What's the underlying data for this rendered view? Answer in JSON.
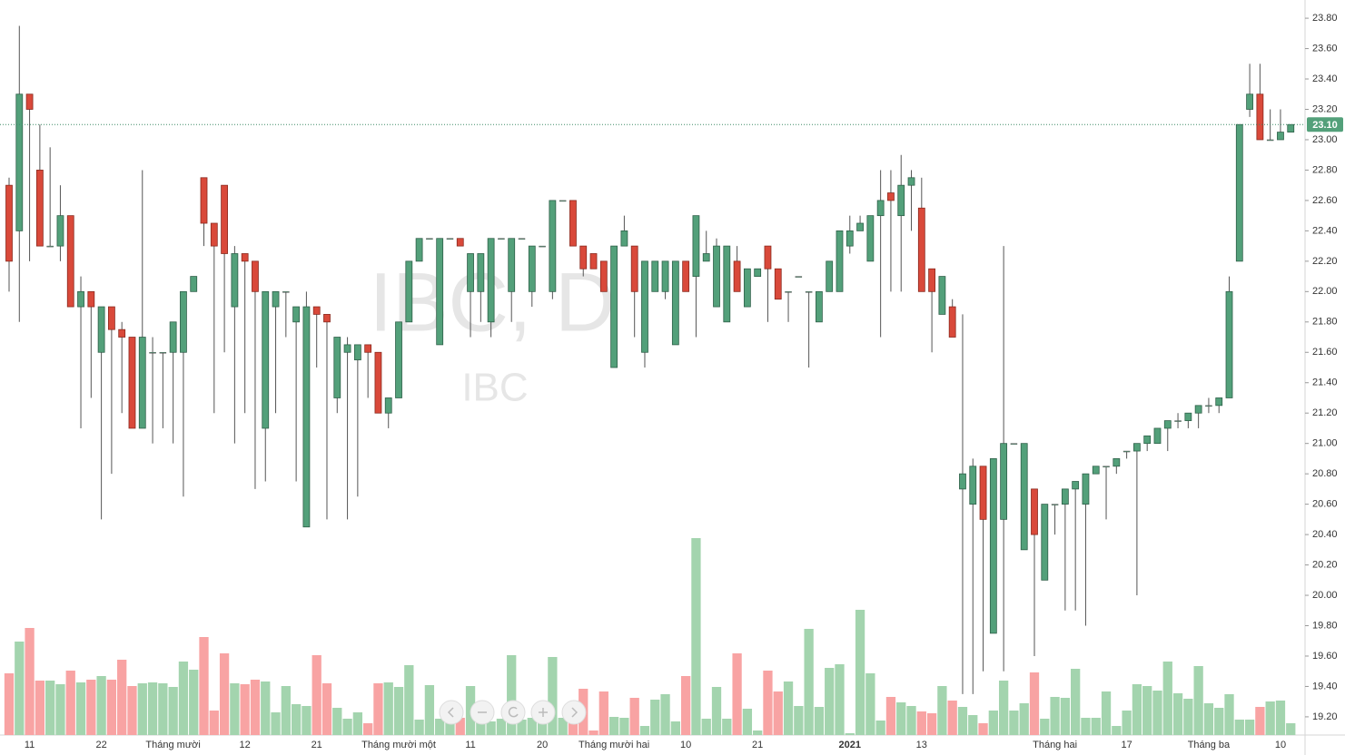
{
  "chart_data": {
    "type": "candlestick",
    "watermark": "IBC, D",
    "symbol": "IBC",
    "ylim": [
      19.08,
      23.92
    ],
    "yticks": [
      {
        "value": 19.2,
        "label": "19.20"
      },
      {
        "value": 19.4,
        "label": "19.40"
      },
      {
        "value": 19.6,
        "label": "19.60"
      },
      {
        "value": 19.8,
        "label": "19.80"
      },
      {
        "value": 20.0,
        "label": "20.00"
      },
      {
        "value": 20.2,
        "label": "20.20"
      },
      {
        "value": 20.4,
        "label": "20.40"
      },
      {
        "value": 20.6,
        "label": "20.60"
      },
      {
        "value": 20.8,
        "label": "20.80"
      },
      {
        "value": 21.0,
        "label": "21.00"
      },
      {
        "value": 21.2,
        "label": "21.20"
      },
      {
        "value": 21.4,
        "label": "21.40"
      },
      {
        "value": 21.6,
        "label": "21.60"
      },
      {
        "value": 21.8,
        "label": "21.80"
      },
      {
        "value": 22.0,
        "label": "22.00"
      },
      {
        "value": 22.2,
        "label": "22.20"
      },
      {
        "value": 22.4,
        "label": "22.40"
      },
      {
        "value": 22.6,
        "label": "22.60"
      },
      {
        "value": 22.8,
        "label": "22.80"
      },
      {
        "value": 23.0,
        "label": "23.00"
      },
      {
        "value": 23.2,
        "label": "23.20"
      },
      {
        "value": 23.4,
        "label": "23.40"
      },
      {
        "value": 23.6,
        "label": "23.60"
      },
      {
        "value": 23.8,
        "label": "23.80"
      }
    ],
    "last_price": {
      "value": 23.1,
      "label": "23.10"
    },
    "up_color": "#53a07a",
    "down_color": "#d9493a",
    "volume_up_color": "#a3d4ae",
    "volume_down_color": "#f8a3a3",
    "categories": [
      null,
      null,
      "11",
      null,
      null,
      null,
      null,
      null,
      null,
      "22",
      null,
      null,
      null,
      null,
      null,
      null,
      "Tháng mười",
      null,
      null,
      null,
      null,
      null,
      null,
      "12",
      null,
      null,
      null,
      null,
      null,
      null,
      "21",
      null,
      null,
      null,
      null,
      null,
      null,
      null,
      "Tháng mười một",
      null,
      null,
      null,
      null,
      null,
      null,
      "11",
      null,
      null,
      null,
      null,
      null,
      null,
      "20",
      null,
      null,
      null,
      null,
      null,
      null,
      "Tháng mười hai",
      null,
      null,
      null,
      null,
      null,
      null,
      "10",
      null,
      null,
      null,
      null,
      null,
      null,
      "21",
      null,
      null,
      null,
      null,
      null,
      null,
      null,
      null,
      "2021",
      null,
      null,
      null,
      null,
      null,
      null,
      "13",
      null,
      null,
      null,
      null,
      null,
      null,
      null,
      null,
      null,
      null,
      null,
      null,
      "Tháng hai",
      null,
      null,
      null,
      null,
      null,
      null,
      "17",
      null,
      null,
      null,
      null,
      null,
      null,
      null,
      "Tháng ba",
      null,
      null,
      null,
      null,
      null,
      null,
      "10",
      null
    ],
    "candles": [
      [
        22.7,
        22.75,
        22.0,
        22.2
      ],
      [
        22.4,
        23.75,
        21.8,
        23.3
      ],
      [
        23.3,
        23.3,
        22.2,
        23.2
      ],
      [
        22.8,
        23.1,
        22.3,
        22.3
      ],
      [
        22.3,
        22.95,
        22.3,
        22.3
      ],
      [
        22.3,
        22.7,
        22.2,
        22.5
      ],
      [
        22.5,
        22.5,
        21.9,
        21.9
      ],
      [
        21.9,
        22.1,
        21.1,
        22.0
      ],
      [
        22.0,
        22.0,
        21.3,
        21.9
      ],
      [
        21.6,
        21.9,
        20.5,
        21.9
      ],
      [
        21.9,
        21.9,
        20.8,
        21.75
      ],
      [
        21.75,
        21.8,
        21.2,
        21.7
      ],
      [
        21.7,
        21.7,
        21.1,
        21.1
      ],
      [
        21.1,
        22.8,
        21.1,
        21.7
      ],
      [
        21.6,
        21.7,
        21.0,
        21.6
      ],
      [
        21.6,
        21.6,
        21.1,
        21.6
      ],
      [
        21.6,
        21.8,
        21.0,
        21.8
      ],
      [
        21.6,
        22.0,
        20.65,
        22.0
      ],
      [
        22.0,
        22.1,
        22.0,
        22.1
      ],
      [
        22.75,
        22.75,
        22.3,
        22.45
      ],
      [
        22.45,
        22.45,
        21.2,
        22.3
      ],
      [
        22.7,
        22.7,
        21.6,
        22.25
      ],
      [
        21.9,
        22.3,
        21.0,
        22.25
      ],
      [
        22.25,
        22.25,
        21.2,
        22.2
      ],
      [
        22.2,
        22.2,
        20.7,
        22.0
      ],
      [
        21.1,
        22.0,
        20.75,
        22.0
      ],
      [
        21.9,
        22.0,
        21.2,
        22.0
      ],
      [
        22.0,
        22.0,
        21.7,
        22.0
      ],
      [
        21.8,
        21.9,
        20.75,
        21.9
      ],
      [
        20.45,
        22.0,
        20.45,
        21.9
      ],
      [
        21.9,
        21.9,
        21.5,
        21.85
      ],
      [
        21.85,
        21.85,
        20.5,
        21.8
      ],
      [
        21.3,
        21.7,
        21.2,
        21.7
      ],
      [
        21.6,
        21.7,
        20.5,
        21.65
      ],
      [
        21.55,
        21.65,
        20.65,
        21.65
      ],
      [
        21.65,
        21.65,
        21.3,
        21.6
      ],
      [
        21.6,
        21.6,
        21.2,
        21.2
      ],
      [
        21.2,
        21.3,
        21.1,
        21.3
      ],
      [
        21.3,
        21.8,
        21.3,
        21.8
      ],
      [
        21.8,
        22.2,
        21.8,
        22.2
      ],
      [
        22.2,
        22.35,
        22.2,
        22.35
      ],
      [
        22.35,
        22.35,
        22.35,
        22.35
      ],
      [
        21.65,
        22.35,
        21.65,
        22.35
      ],
      [
        22.35,
        22.35,
        22.35,
        22.35
      ],
      [
        22.35,
        22.35,
        22.3,
        22.3
      ],
      [
        22.0,
        22.25,
        21.7,
        22.25
      ],
      [
        22.0,
        22.25,
        21.8,
        22.25
      ],
      [
        21.8,
        22.35,
        21.7,
        22.35
      ],
      [
        22.35,
        22.35,
        22.35,
        22.35
      ],
      [
        22.0,
        22.35,
        21.8,
        22.35
      ],
      [
        22.35,
        22.35,
        22.35,
        22.35
      ],
      [
        22.0,
        22.3,
        21.9,
        22.3
      ],
      [
        22.3,
        22.3,
        22.3,
        22.3
      ],
      [
        22.0,
        22.6,
        21.95,
        22.6
      ],
      [
        22.6,
        22.6,
        22.6,
        22.6
      ],
      [
        22.6,
        22.6,
        22.3,
        22.3
      ],
      [
        22.3,
        22.3,
        22.1,
        22.15
      ],
      [
        22.25,
        22.25,
        22.15,
        22.15
      ],
      [
        22.2,
        22.2,
        22.0,
        22.0
      ],
      [
        21.5,
        22.3,
        21.5,
        22.3
      ],
      [
        22.3,
        22.5,
        22.3,
        22.4
      ],
      [
        22.3,
        22.3,
        21.7,
        22.0
      ],
      [
        21.6,
        22.2,
        21.5,
        22.2
      ],
      [
        22.0,
        22.2,
        22.0,
        22.2
      ],
      [
        22.0,
        22.2,
        21.95,
        22.2
      ],
      [
        21.65,
        22.2,
        21.65,
        22.2
      ],
      [
        22.2,
        22.2,
        22.0,
        22.0
      ],
      [
        22.1,
        22.5,
        21.7,
        22.5
      ],
      [
        22.2,
        22.4,
        22.2,
        22.25
      ],
      [
        21.9,
        22.35,
        21.9,
        22.3
      ],
      [
        21.8,
        22.3,
        21.8,
        22.3
      ],
      [
        22.2,
        22.3,
        22.0,
        22.0
      ],
      [
        21.9,
        22.15,
        21.9,
        22.15
      ],
      [
        22.1,
        22.15,
        22.1,
        22.15
      ],
      [
        22.3,
        22.3,
        21.8,
        22.15
      ],
      [
        22.15,
        22.15,
        21.95,
        21.95
      ],
      [
        22.0,
        22.0,
        21.8,
        22.0
      ],
      [
        22.1,
        22.1,
        22.1,
        22.1
      ],
      [
        22.0,
        22.0,
        21.5,
        22.0
      ],
      [
        21.8,
        22.0,
        21.8,
        22.0
      ],
      [
        22.0,
        22.2,
        22.0,
        22.2
      ],
      [
        22.0,
        22.4,
        22.0,
        22.4
      ],
      [
        22.3,
        22.5,
        22.25,
        22.4
      ],
      [
        22.4,
        22.5,
        22.4,
        22.45
      ],
      [
        22.2,
        22.5,
        22.2,
        22.5
      ],
      [
        22.5,
        22.8,
        21.7,
        22.6
      ],
      [
        22.65,
        22.8,
        22.0,
        22.6
      ],
      [
        22.5,
        22.9,
        22.0,
        22.7
      ],
      [
        22.7,
        22.8,
        22.4,
        22.75
      ],
      [
        22.55,
        22.75,
        22.0,
        22.0
      ],
      [
        22.15,
        22.15,
        21.6,
        22.0
      ],
      [
        21.85,
        22.1,
        21.85,
        22.1
      ],
      [
        21.9,
        21.95,
        21.7,
        21.7
      ],
      [
        20.7,
        21.85,
        19.35,
        20.8
      ],
      [
        20.6,
        20.9,
        19.35,
        20.85
      ],
      [
        20.85,
        20.85,
        19.5,
        20.5
      ],
      [
        19.75,
        20.9,
        19.75,
        20.9
      ],
      [
        20.5,
        22.3,
        19.5,
        21.0
      ],
      [
        21.0,
        21.0,
        21.0,
        21.0
      ],
      [
        20.3,
        21.0,
        20.3,
        21.0
      ],
      [
        20.7,
        20.7,
        19.6,
        20.4
      ],
      [
        20.1,
        20.6,
        20.1,
        20.6
      ],
      [
        20.6,
        20.6,
        20.4,
        20.6
      ],
      [
        20.6,
        20.7,
        19.9,
        20.7
      ],
      [
        20.7,
        20.75,
        19.9,
        20.75
      ],
      [
        20.6,
        20.8,
        19.8,
        20.8
      ],
      [
        20.8,
        20.85,
        20.8,
        20.85
      ],
      [
        20.85,
        20.85,
        20.5,
        20.85
      ],
      [
        20.85,
        20.9,
        20.8,
        20.9
      ],
      [
        20.95,
        20.95,
        20.9,
        20.95
      ],
      [
        20.95,
        21.0,
        20.0,
        21.0
      ],
      [
        21.0,
        21.05,
        20.95,
        21.05
      ],
      [
        21.0,
        21.1,
        21.0,
        21.1
      ],
      [
        21.1,
        21.15,
        20.95,
        21.15
      ],
      [
        21.15,
        21.2,
        21.1,
        21.15
      ],
      [
        21.15,
        21.2,
        21.1,
        21.2
      ],
      [
        21.2,
        21.25,
        21.1,
        21.25
      ],
      [
        21.25,
        21.3,
        21.2,
        21.25
      ],
      [
        21.25,
        21.3,
        21.2,
        21.3
      ],
      [
        21.3,
        22.1,
        21.3,
        22.0
      ],
      [
        22.2,
        23.1,
        22.2,
        23.1
      ],
      [
        23.2,
        23.5,
        23.15,
        23.3
      ],
      [
        23.3,
        23.5,
        23.0,
        23.0
      ],
      [
        23.0,
        23.2,
        23.0,
        23.0
      ],
      [
        23.0,
        23.2,
        23.0,
        23.05
      ],
      [
        23.05,
        23.1,
        23.05,
        23.1
      ]
    ],
    "volume": [
      68,
      103,
      118,
      60,
      60,
      56,
      71,
      58,
      61,
      65,
      61,
      83,
      54,
      57,
      58,
      57,
      53,
      81,
      72,
      108,
      27,
      90,
      57,
      56,
      61,
      59,
      25,
      54,
      34,
      32,
      88,
      57,
      30,
      18,
      25,
      13,
      57,
      58,
      53,
      77,
      17,
      55,
      18,
      18,
      19,
      54,
      18,
      15,
      18,
      88,
      17,
      19,
      17,
      86,
      19,
      36,
      51,
      5,
      48,
      20,
      19,
      41,
      10,
      39,
      45,
      15,
      65,
      217,
      18,
      53,
      18,
      90,
      29,
      5,
      71,
      48,
      59,
      32,
      117,
      31,
      74,
      78,
      2,
      138,
      68,
      16,
      42,
      36,
      32,
      26,
      24,
      54,
      38,
      31,
      22,
      13,
      27,
      60,
      27,
      35,
      69,
      18,
      42,
      41,
      73,
      19,
      19,
      48,
      10,
      27,
      56,
      54,
      49,
      81,
      46,
      40,
      76,
      35,
      30,
      45,
      17,
      17,
      31,
      37,
      38,
      13
    ]
  }
}
